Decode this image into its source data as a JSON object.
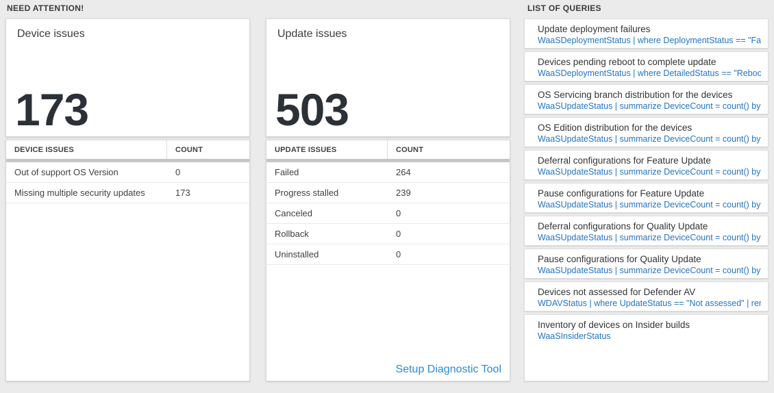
{
  "sections": {
    "need_attention_label": "NEED ATTENTION!",
    "list_of_queries_label": "LIST OF QUERIES"
  },
  "device_panel": {
    "title": "Device issues",
    "big_number": "173",
    "table": {
      "columns": [
        "DEVICE ISSUES",
        "COUNT"
      ],
      "rows": [
        {
          "label": "Out of support OS Version",
          "count": "0"
        },
        {
          "label": "Missing multiple security updates",
          "count": "173"
        }
      ]
    }
  },
  "update_panel": {
    "title": "Update issues",
    "big_number": "503",
    "table": {
      "columns": [
        "UPDATE ISSUES",
        "COUNT"
      ],
      "rows": [
        {
          "label": "Failed",
          "count": "264"
        },
        {
          "label": "Progress stalled",
          "count": "239"
        },
        {
          "label": "Canceled",
          "count": "0"
        },
        {
          "label": "Rollback",
          "count": "0"
        },
        {
          "label": "Uninstalled",
          "count": "0"
        }
      ]
    },
    "diagnostic_link_label": "Setup Diagnostic Tool"
  },
  "queries": [
    {
      "title": "Update deployment failures",
      "query": "WaaSDeploymentStatus | where DeploymentStatus == \"Failed\" |..."
    },
    {
      "title": "Devices pending reboot to complete update",
      "query": "WaaSDeploymentStatus | where DetailedStatus == \"Reboot pend..."
    },
    {
      "title": "OS Servicing branch distribution for the devices",
      "query": "WaaSUpdateStatus | summarize DeviceCount = count() by OSSer..."
    },
    {
      "title": "OS Edition distribution for the devices",
      "query": "WaaSUpdateStatus | summarize DeviceCount = count() by OSEdit..."
    },
    {
      "title": "Deferral configurations for Feature Update",
      "query": "WaaSUpdateStatus | summarize DeviceCount = count() by Featur..."
    },
    {
      "title": "Pause configurations for Feature Update",
      "query": "WaaSUpdateStatus | summarize DeviceCount = count() by Featur..."
    },
    {
      "title": "Deferral configurations for Quality Update",
      "query": "WaaSUpdateStatus | summarize DeviceCount = count() by Qualit..."
    },
    {
      "title": "Pause configurations for Quality Update",
      "query": "WaaSUpdateStatus | summarize DeviceCount = count() by Qualit..."
    },
    {
      "title": "Devices not assessed for Defender AV",
      "query": "WDAVStatus | where UpdateStatus == \"Not assessed\" | render ta..."
    },
    {
      "title": "Inventory of devices on Insider builds",
      "query": "WaaSInsiderStatus"
    }
  ],
  "colors": {
    "background": "#ebebeb",
    "query_link_blue": "#2374c4",
    "diagnostic_link_blue": "#2e8ad0",
    "big_number_dark": "#2b3137",
    "header_bar_gray": "#c6c6c6"
  }
}
